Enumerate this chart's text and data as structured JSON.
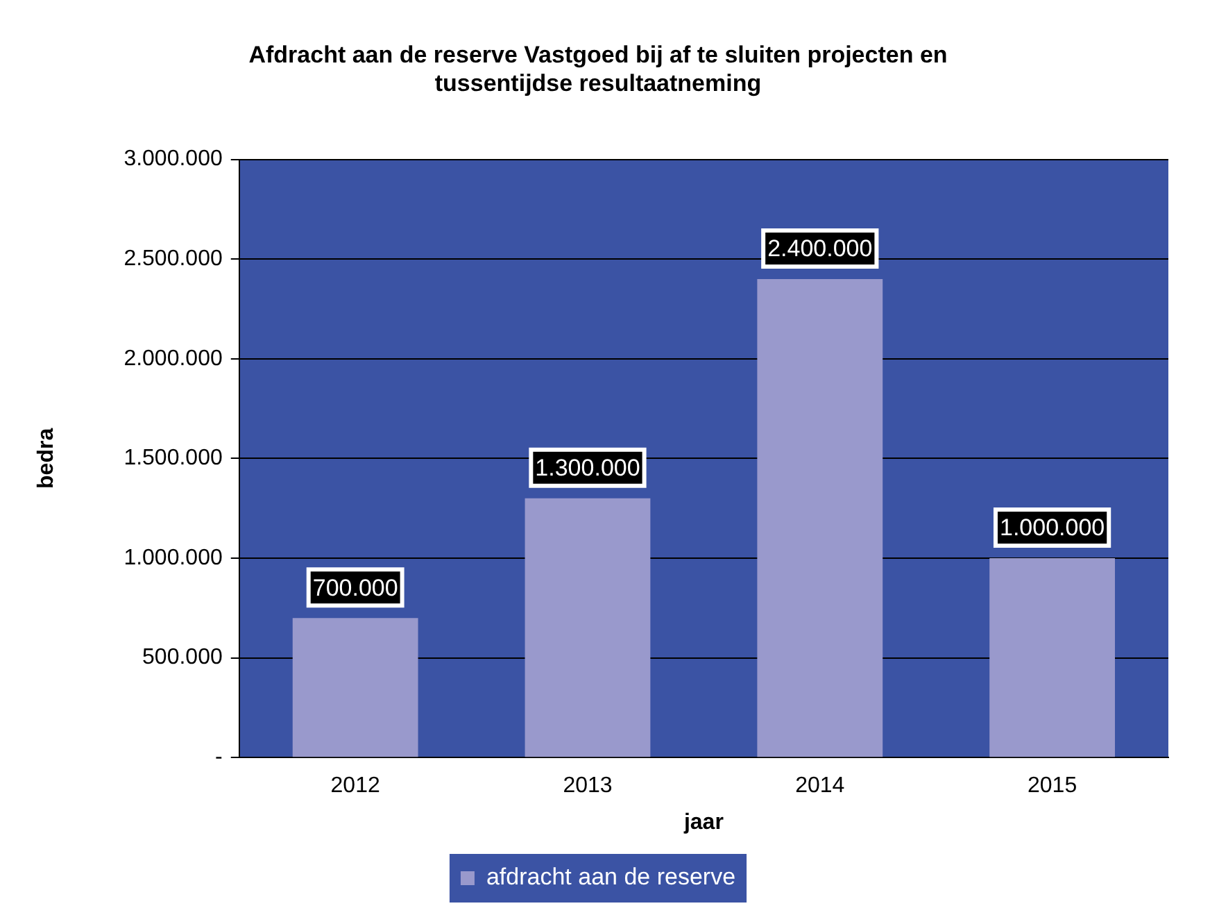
{
  "chart_data": {
    "type": "bar",
    "title": "Afdracht aan de reserve Vastgoed bij af te sluiten projecten en tussentijdse resultaatneming",
    "xlabel": "jaar",
    "ylabel": "bedra",
    "categories": [
      "2012",
      "2013",
      "2014",
      "2015"
    ],
    "series": [
      {
        "name": "afdracht aan de reserve",
        "color": "#9999cc",
        "values": [
          700000,
          1300000,
          2400000,
          1000000
        ],
        "value_labels": [
          "700.000",
          "1.300.000",
          "2.400.000",
          "1.000.000"
        ]
      }
    ],
    "ylim": [
      0,
      3000000
    ],
    "yticks": [
      {
        "value": 0,
        "label": "-"
      },
      {
        "value": 500000,
        "label": "500.000"
      },
      {
        "value": 1000000,
        "label": "1.000.000"
      },
      {
        "value": 1500000,
        "label": "1.500.000"
      },
      {
        "value": 2000000,
        "label": "2.000.000"
      },
      {
        "value": 2500000,
        "label": "2.500.000"
      },
      {
        "value": 3000000,
        "label": "3.000.000"
      }
    ],
    "grid": "y",
    "legend": "bottom"
  }
}
